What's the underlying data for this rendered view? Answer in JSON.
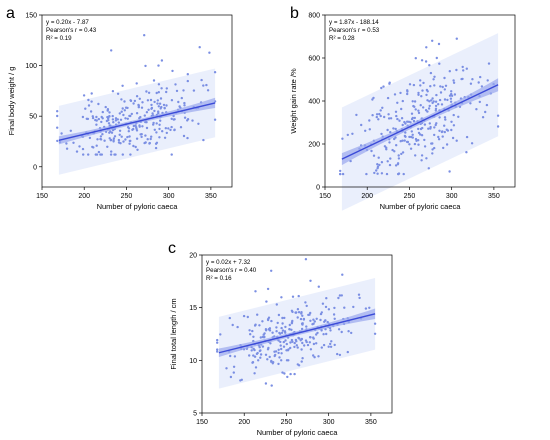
{
  "figure": {
    "point_color": "#7b8fe3",
    "line_color": "#3b4bd8",
    "ci_color": "#9aa8ee",
    "pi_color": "#e6ecfb"
  },
  "chart_data": [
    {
      "id": "a",
      "type": "scatter",
      "panel_letter": "a",
      "xlabel": "Number of pyloric caeca",
      "ylabel": "Final body weight / g",
      "xlim": [
        150,
        375
      ],
      "ylim": [
        -20,
        150
      ],
      "xticks": [
        150,
        200,
        250,
        300,
        350
      ],
      "yticks": [
        0,
        50,
        100,
        150
      ],
      "annotation": {
        "line1": "y = 0.20x - 7.87",
        "line2": "Pearson's r = 0.43",
        "line3": "R² = 0.19"
      },
      "fit": {
        "slope": 0.2,
        "intercept": -7.87,
        "x_range": [
          170,
          355
        ],
        "ci_half_start": 4,
        "ci_half_mid": 2,
        "ci_half_end": 5,
        "pi_half": 34
      },
      "points": {
        "n": 300,
        "x_mean": 258,
        "x_sd": 38,
        "x_min": 168,
        "x_max": 355,
        "resid_sd": 17,
        "y_min": 12,
        "y_max": 132,
        "seed": 11
      },
      "outliers": [
        [
          271,
          130
        ],
        [
          232,
          115
        ],
        [
          292,
          105
        ],
        [
          288,
          100
        ]
      ]
    },
    {
      "id": "b",
      "type": "scatter",
      "panel_letter": "b",
      "xlabel": "Number of pyloric caeca",
      "ylabel": "Weight gain rate /%",
      "xlim": [
        150,
        375
      ],
      "ylim": [
        0,
        800
      ],
      "xticks": [
        150,
        200,
        250,
        300,
        350
      ],
      "yticks": [
        0,
        200,
        400,
        600,
        800
      ],
      "annotation": {
        "line1": "y = 1.87x - 188.14",
        "line2": "Pearson's r = 0.53",
        "line3": "R² = 0.28"
      },
      "fit": {
        "slope": 1.87,
        "intercept": -188.14,
        "x_range": [
          170,
          355
        ],
        "ci_half_start": 28,
        "ci_half_mid": 12,
        "ci_half_end": 30,
        "pi_half": 240
      },
      "points": {
        "n": 300,
        "x_mean": 258,
        "x_sd": 38,
        "x_min": 168,
        "x_max": 355,
        "resid_sd": 120,
        "y_min": 60,
        "y_max": 690,
        "seed": 23
      },
      "outliers": [
        [
          277,
          680
        ],
        [
          285,
          665
        ],
        [
          270,
          650
        ]
      ]
    },
    {
      "id": "c",
      "type": "scatter",
      "panel_letter": "c",
      "xlabel": "Number of pyloric caeca",
      "ylabel": "Final total length / cm",
      "xlim": [
        150,
        375
      ],
      "ylim": [
        5,
        20
      ],
      "xticks": [
        150,
        200,
        250,
        300,
        350
      ],
      "yticks": [
        5,
        10,
        15,
        20
      ],
      "annotation": {
        "line1": "y = 0.02x + 7.32",
        "line2": "Pearson's r = 0.40",
        "line3": "R² = 0.16"
      },
      "fit": {
        "slope": 0.02,
        "intercept": 7.32,
        "x_range": [
          170,
          355
        ],
        "ci_half_start": 0.4,
        "ci_half_mid": 0.2,
        "ci_half_end": 0.5,
        "pi_half": 3.4
      },
      "points": {
        "n": 300,
        "x_mean": 258,
        "x_sd": 38,
        "x_min": 168,
        "x_max": 355,
        "resid_sd": 1.6,
        "y_min": 7.6,
        "y_max": 19.8,
        "seed": 37
      },
      "outliers": [
        [
          273,
          19.6
        ],
        [
          232,
          18.5
        ]
      ]
    }
  ]
}
